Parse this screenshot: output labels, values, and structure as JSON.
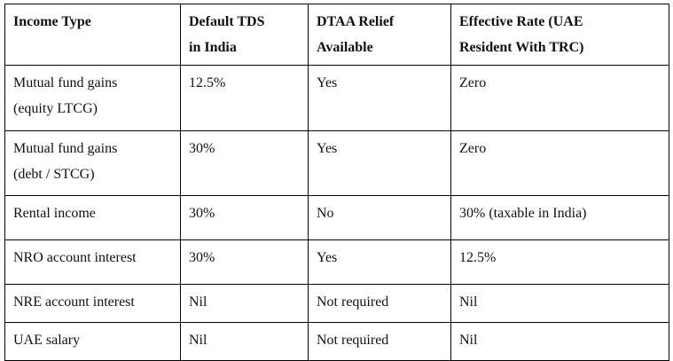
{
  "theme": {
    "background": "#ffffff",
    "border_color": "#000000",
    "text_color": "#111111"
  },
  "table": {
    "columns": [
      "Income Type",
      "Default TDS in India",
      "DTAA Relief Available",
      "Effective Rate (UAE Resident With TRC)"
    ],
    "rows": [
      [
        "Mutual fund gains (equity LTCG)",
        "12.5%",
        "Yes",
        "Zero"
      ],
      [
        "Mutual fund gains (debt / STCG)",
        "30%",
        "Yes",
        "Zero"
      ],
      [
        "Rental income",
        "30%",
        "No",
        "30% (taxable in India)"
      ],
      [
        "NRO account interest",
        "30%",
        "Yes",
        "12.5%"
      ],
      [
        "NRE account interest",
        "Nil",
        "Not required",
        "Nil"
      ],
      [
        "UAE salary",
        "Nil",
        "Not required",
        "Nil"
      ]
    ]
  }
}
